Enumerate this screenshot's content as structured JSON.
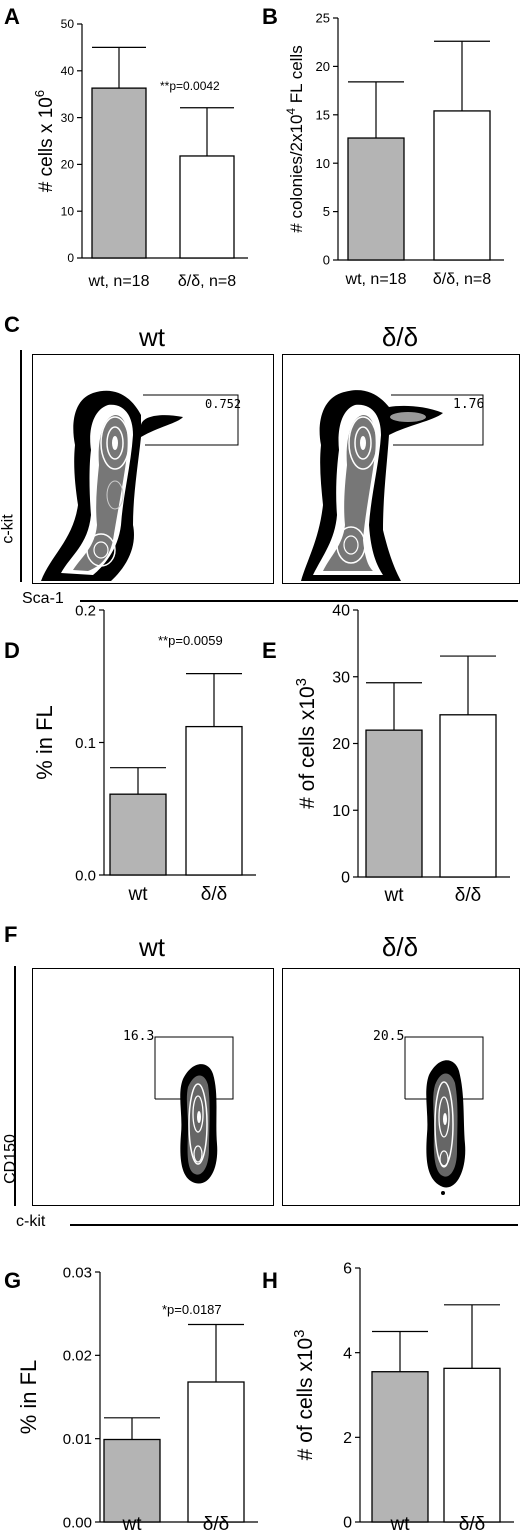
{
  "panels": {
    "A": {
      "letter": "A"
    },
    "B": {
      "letter": "B"
    },
    "C": {
      "letter": "C",
      "titles": [
        "wt",
        "δ/δ"
      ],
      "gate_values": [
        "0.752",
        "1.76"
      ],
      "y_axis": "c-kit",
      "x_axis": "Sca-1"
    },
    "D": {
      "letter": "D"
    },
    "E": {
      "letter": "E"
    },
    "F": {
      "letter": "F",
      "titles": [
        "wt",
        "δ/δ"
      ],
      "gate_values": [
        "16.3",
        "20.5"
      ],
      "y_axis": "CD150",
      "x_axis": "c-kit"
    },
    "G": {
      "letter": "G"
    },
    "H": {
      "letter": "H"
    }
  },
  "colors": {
    "wt_bar": "#b4b4b4",
    "delta_bar": "#ffffff",
    "contour_dark": "#000000"
  },
  "chart_data": [
    {
      "id": "A",
      "type": "bar",
      "categories": [
        "wt, n=18",
        "δ/δ, n=8"
      ],
      "values": [
        36.3,
        21.8
      ],
      "errors": [
        8.7,
        10.3
      ],
      "ylabel": "# cells x 10",
      "ylabel_sup": "6",
      "ylim": [
        0,
        50
      ],
      "yticks": [
        "0",
        "10",
        "20",
        "30",
        "40",
        "50"
      ],
      "annotation": "**p=0.0042",
      "grid": false
    },
    {
      "id": "B",
      "type": "bar",
      "categories": [
        "wt, n=18",
        "δ/δ, n=8"
      ],
      "values": [
        12.6,
        15.4
      ],
      "errors": [
        5.8,
        7.2
      ],
      "ylabel_parts": [
        "# colonies/2x10",
        "4",
        " FL cells"
      ],
      "ylim": [
        0,
        25
      ],
      "yticks": [
        "0",
        "5",
        "10",
        "15",
        "20",
        "25"
      ],
      "annotation": "",
      "grid": false
    },
    {
      "id": "D",
      "type": "bar",
      "categories": [
        "wt",
        "δ/δ"
      ],
      "values": [
        0.061,
        0.112
      ],
      "errors": [
        0.02,
        0.04
      ],
      "ylabel": "% in FL",
      "ylim": [
        0,
        0.2
      ],
      "yticks": [
        "0.0",
        "0.1",
        "0.2"
      ],
      "annotation": "**p=0.0059",
      "grid": false
    },
    {
      "id": "E",
      "type": "bar",
      "categories": [
        "wt",
        "δ/δ"
      ],
      "values": [
        22.0,
        24.3
      ],
      "errors": [
        7.1,
        8.8
      ],
      "ylabel": "# of cells x10",
      "ylabel_sup": "3",
      "ylim": [
        0,
        40
      ],
      "yticks": [
        "0",
        "10",
        "20",
        "30",
        "40"
      ],
      "annotation": "",
      "grid": false
    },
    {
      "id": "G",
      "type": "bar",
      "categories": [
        "wt",
        "δ/δ"
      ],
      "values": [
        0.0099,
        0.0168
      ],
      "errors": [
        0.0026,
        0.0069
      ],
      "ylabel": "% in FL",
      "ylim": [
        0,
        0.03
      ],
      "yticks": [
        "0.00",
        "0.01",
        "0.02",
        "0.03"
      ],
      "annotation": "*p=0.0187",
      "grid": false
    },
    {
      "id": "H",
      "type": "bar",
      "categories": [
        "wt",
        "δ/δ"
      ],
      "values": [
        3.55,
        3.63
      ],
      "errors": [
        0.95,
        1.5
      ],
      "ylabel": "# of cells x10",
      "ylabel_sup": "3",
      "ylim": [
        0,
        6
      ],
      "yticks": [
        "0",
        "2",
        "4",
        "6"
      ],
      "annotation": "",
      "grid": false
    }
  ]
}
